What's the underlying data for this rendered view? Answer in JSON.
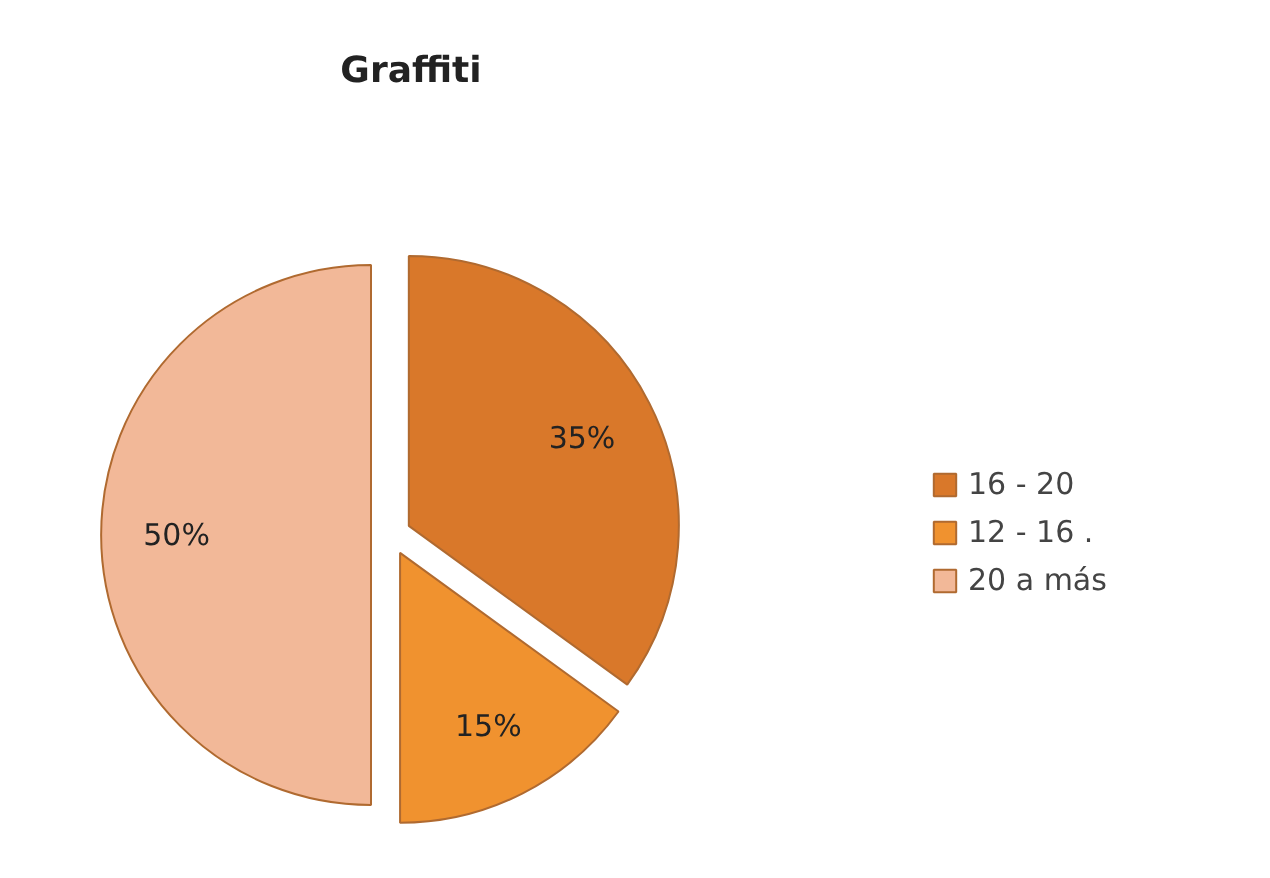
{
  "chart_data": {
    "type": "pie",
    "title": "Graffiti",
    "categories": [
      "16 - 20",
      "12 - 16 .",
      "20 a más"
    ],
    "values": [
      35,
      15,
      50
    ],
    "colors": [
      "#d9782a",
      "#f0922f",
      "#f2b898"
    ],
    "value_labels": [
      "35%",
      "15%",
      "50%"
    ],
    "legend": "right"
  }
}
